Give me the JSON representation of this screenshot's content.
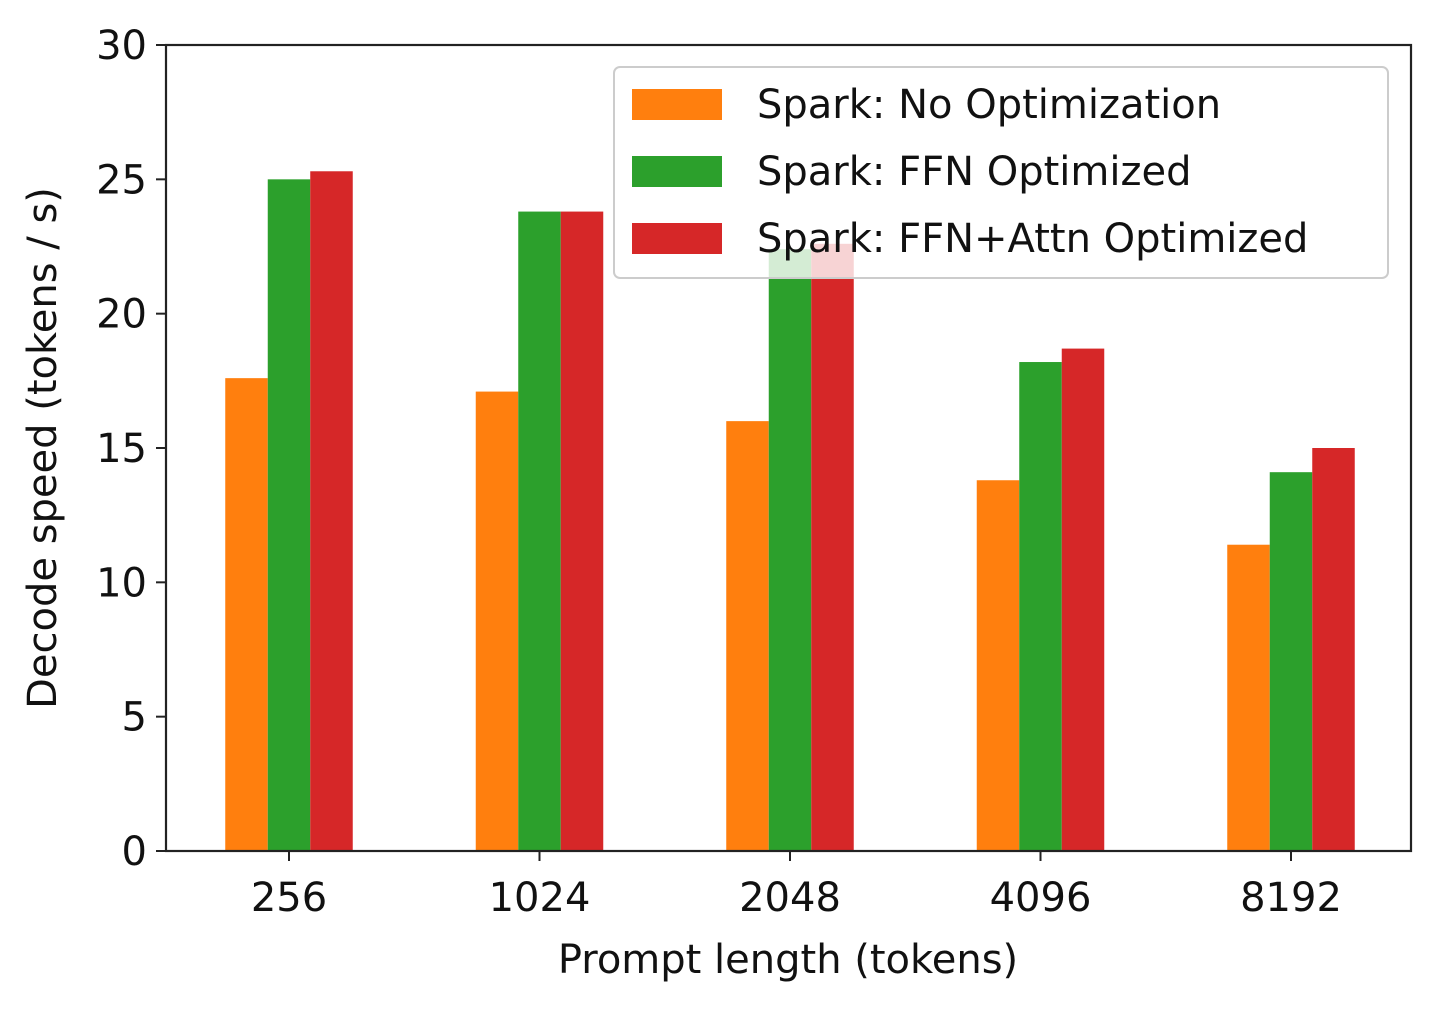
{
  "chart_data": {
    "type": "bar",
    "title": "",
    "xlabel": "Prompt length (tokens)",
    "ylabel": "Decode speed (tokens / s)",
    "categories": [
      "256",
      "1024",
      "2048",
      "4096",
      "8192"
    ],
    "ylim": [
      0,
      30
    ],
    "yticks": [
      0,
      5,
      10,
      15,
      20,
      25,
      30
    ],
    "ytick_labels": [
      "0",
      "5",
      "10",
      "15",
      "20",
      "25",
      "30"
    ],
    "grid": false,
    "legend_position": "top-right",
    "series": [
      {
        "name": "Spark: No Optimization",
        "color": "#ff7f0e",
        "values": [
          17.6,
          17.1,
          16.0,
          13.8,
          11.4
        ]
      },
      {
        "name": "Spark: FFN Optimized",
        "color": "#2ca02c",
        "values": [
          25.0,
          23.8,
          22.4,
          18.2,
          14.1
        ]
      },
      {
        "name": "Spark: FFN+Attn Optimized",
        "color": "#d62728",
        "values": [
          25.3,
          23.8,
          22.6,
          18.7,
          15.0
        ]
      }
    ]
  }
}
